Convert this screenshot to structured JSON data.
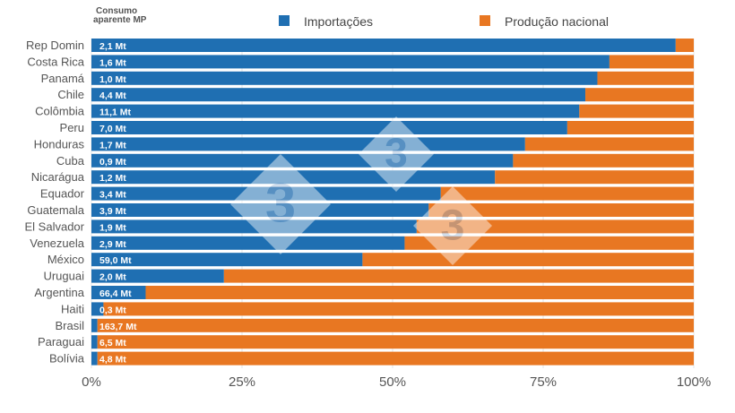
{
  "chart_data": {
    "type": "bar",
    "orientation": "horizontal",
    "stacked": "percent",
    "column_header": "Consumo aparente MP",
    "categories": [
      "Rep Domin",
      "Costa Rica",
      "Panamá",
      "Chile",
      "Colômbia",
      "Peru",
      "Honduras",
      "Cuba",
      "Nicarágua",
      "Equador",
      "Guatemala",
      "El Salvador",
      "Venezuela",
      "México",
      "Uruguai",
      "Argentina",
      "Haiti",
      "Brasil",
      "Paraguai",
      "Bolívia"
    ],
    "bar_labels": [
      "2,1 Mt",
      "1,6 Mt",
      "1,0 Mt",
      "4,4 Mt",
      "11,1 Mt",
      "7,0 Mt",
      "1,7 Mt",
      "0,9 Mt",
      "1,2 Mt",
      "3,4 Mt",
      "3,9 Mt",
      "1,9 Mt",
      "2,9 Mt",
      "59,0 Mt",
      "2,0 Mt",
      "66,4 Mt",
      "0,3 Mt",
      "163,7 Mt",
      "6,5 Mt",
      "4,8 Mt"
    ],
    "series": [
      {
        "name": "Importações",
        "color": "#1f6fb2",
        "values": [
          97,
          86,
          84,
          82,
          81,
          79,
          72,
          70,
          67,
          58,
          56,
          54,
          52,
          45,
          22,
          9,
          2,
          1,
          1,
          1
        ]
      },
      {
        "name": "Produção nacional",
        "color": "#e87722",
        "values": [
          3,
          14,
          16,
          18,
          19,
          21,
          28,
          30,
          33,
          42,
          44,
          46,
          48,
          55,
          78,
          91,
          98,
          99,
          99,
          99
        ]
      }
    ],
    "xlim": [
      0,
      100
    ],
    "xticks": [
      "0%",
      "25%",
      "50%",
      "75%",
      "100%"
    ],
    "legend": "top",
    "grid": true,
    "watermark": "3"
  }
}
